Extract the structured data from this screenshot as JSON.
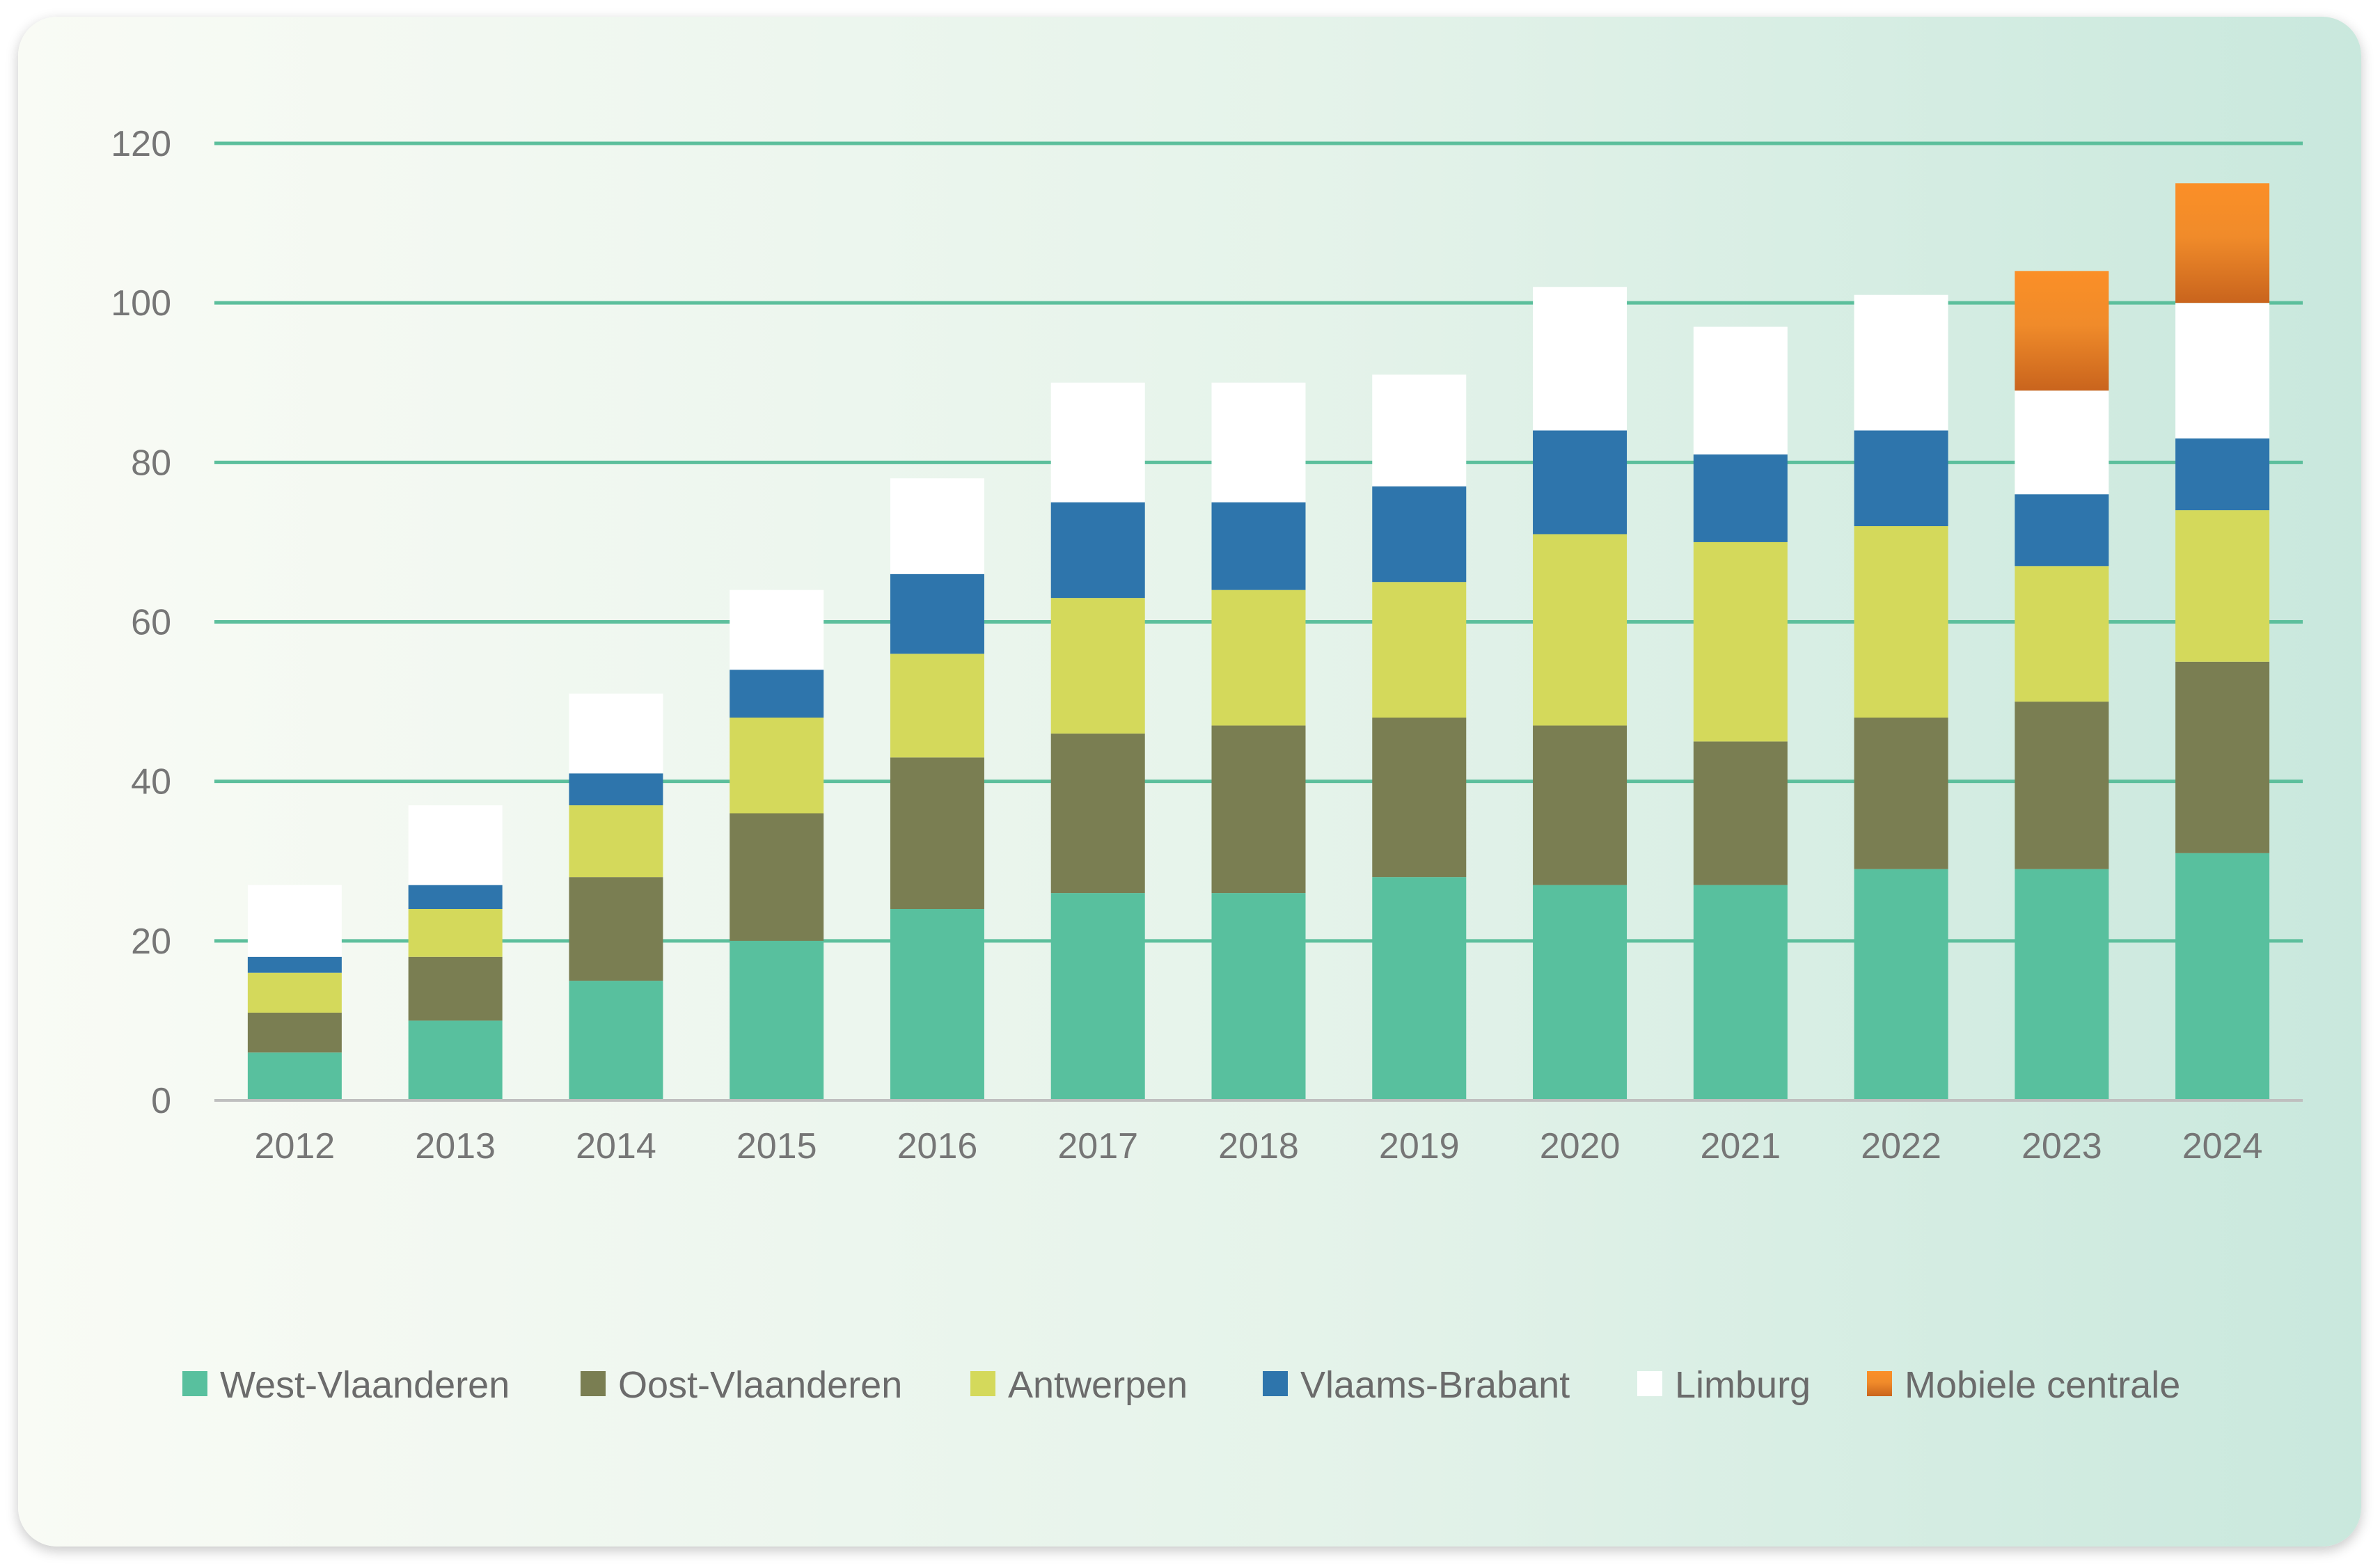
{
  "chart_data": {
    "type": "bar",
    "stacked": true,
    "title": "",
    "xlabel": "",
    "ylabel": "",
    "ylim": [
      0,
      120
    ],
    "yticks": [
      0,
      20,
      40,
      60,
      80,
      100,
      120
    ],
    "grid": true,
    "legend_position": "bottom",
    "categories": [
      "2012",
      "2013",
      "2014",
      "2015",
      "2016",
      "2017",
      "2018",
      "2019",
      "2020",
      "2021",
      "2022",
      "2023",
      "2024"
    ],
    "series": [
      {
        "name": "West-Vlaanderen",
        "color": "#58c09e",
        "values": [
          6,
          10,
          15,
          20,
          24,
          26,
          26,
          28,
          27,
          27,
          29,
          29,
          31
        ]
      },
      {
        "name": "Oost-Vlaanderen",
        "color": "#7a7e52",
        "values": [
          5,
          8,
          13,
          16,
          19,
          20,
          21,
          20,
          20,
          18,
          19,
          21,
          24
        ]
      },
      {
        "name": "Antwerpen",
        "color": "#d4d95b",
        "values": [
          5,
          6,
          9,
          12,
          13,
          17,
          17,
          17,
          24,
          25,
          24,
          17,
          19
        ]
      },
      {
        "name": "Vlaams-Brabant",
        "color": "#2e75ac",
        "values": [
          2,
          3,
          4,
          6,
          10,
          12,
          11,
          12,
          13,
          11,
          12,
          9,
          9
        ]
      },
      {
        "name": "Limburg",
        "color": "#ffffff",
        "values": [
          9,
          10,
          10,
          10,
          12,
          15,
          15,
          14,
          18,
          16,
          17,
          13,
          17
        ]
      },
      {
        "name": "Mobiele centrale",
        "color": "#f38f2c",
        "values": [
          0,
          0,
          0,
          0,
          0,
          0,
          0,
          0,
          0,
          0,
          0,
          15,
          15
        ]
      }
    ]
  }
}
